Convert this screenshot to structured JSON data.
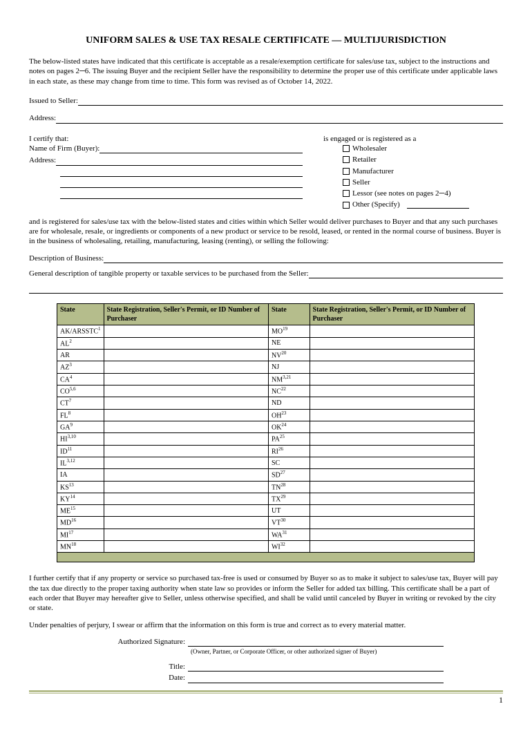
{
  "title": "UNIFORM SALES & USE TAX RESALE CERTIFICATE — MULTIJURISDICTION",
  "intro": "The below-listed states have indicated that this certificate is acceptable as a resale/exemption certificate for sales/use tax, subject to the instructions and notes on pages 2─6. The issuing Buyer and the recipient Seller have the responsibility to determine the proper use of this certificate under applicable laws in each state, as these may change from time to time. This form was revised as of October 14, 2022.",
  "issued_label": "Issued to Seller:",
  "address_label": "Address:",
  "certify_label": "I certify that:",
  "firm_label": "Name of Firm (Buyer):",
  "addr2_label": "Address:",
  "engaged_label": "is engaged or is registered as a",
  "checks": {
    "wholesaler": "Wholesaler",
    "retailer": "Retailer",
    "manufacturer": "Manufacturer",
    "seller": "Seller",
    "lessor": "Lessor (see notes on pages 2─4)",
    "other": "Other (Specify)"
  },
  "reg_para": "and is registered for sales/use tax with the below-listed states and cities within which Seller would deliver purchases to Buyer and that any such purchases are for wholesale, resale, or ingredients or components of a new product or service to be resold, leased, or rented in the normal course of business. Buyer is in the business of wholesaling, retailing, manufacturing, leasing (renting), or selling the following:",
  "desc_bus_label": "Description of Business:",
  "gen_desc_label": "General description of tangible property or taxable services to be purchased from the Seller:",
  "table": {
    "header_state": "State",
    "header_reg": "State Registration, Seller's Permit, or ID Number of Purchaser",
    "left": [
      {
        "s": "AK/ARSSTC",
        "n": "1"
      },
      {
        "s": "AL",
        "n": "2"
      },
      {
        "s": "AR",
        "n": ""
      },
      {
        "s": "AZ",
        "n": "3"
      },
      {
        "s": "CA",
        "n": "4"
      },
      {
        "s": "CO",
        "n": "5,6"
      },
      {
        "s": "CT",
        "n": "7"
      },
      {
        "s": "FL",
        "n": "8"
      },
      {
        "s": "GA",
        "n": "9"
      },
      {
        "s": "HI",
        "n": "3,10"
      },
      {
        "s": "ID",
        "n": "11"
      },
      {
        "s": "IL",
        "n": "3,12"
      },
      {
        "s": "IA",
        "n": ""
      },
      {
        "s": "KS",
        "n": "13"
      },
      {
        "s": "KY",
        "n": "14"
      },
      {
        "s": "ME",
        "n": "15"
      },
      {
        "s": "MD",
        "n": "16"
      },
      {
        "s": "MI",
        "n": "17"
      },
      {
        "s": "MN",
        "n": "18"
      }
    ],
    "right": [
      {
        "s": "MO",
        "n": "19"
      },
      {
        "s": "NE",
        "n": ""
      },
      {
        "s": "NV",
        "n": "20"
      },
      {
        "s": "NJ",
        "n": ""
      },
      {
        "s": "NM",
        "n": "3,21"
      },
      {
        "s": "NC",
        "n": "22"
      },
      {
        "s": "ND",
        "n": ""
      },
      {
        "s": "OH",
        "n": "23"
      },
      {
        "s": "OK",
        "n": "24"
      },
      {
        "s": "PA",
        "n": "25"
      },
      {
        "s": "RI",
        "n": "26"
      },
      {
        "s": "SC",
        "n": ""
      },
      {
        "s": "SD",
        "n": "27"
      },
      {
        "s": "TN",
        "n": "28"
      },
      {
        "s": "TX",
        "n": "29"
      },
      {
        "s": "UT",
        "n": ""
      },
      {
        "s": "VT",
        "n": "30"
      },
      {
        "s": "WA",
        "n": "31"
      },
      {
        "s": "WI",
        "n": "32"
      }
    ]
  },
  "cert_para": "I further certify that if any property or service so purchased tax-free is used or consumed by Buyer so as to make it subject to sales/use tax, Buyer will pay the tax due directly to the proper taxing authority when state law so provides or inform the Seller for added tax billing. This certificate shall be a part of each order that Buyer may hereafter give to Seller, unless otherwise specified, and shall be valid until canceled by Buyer in writing or revoked by the city or state.",
  "perjury": "Under penalties of perjury, I swear or affirm that the information on this form is true and correct as to every material matter.",
  "sig": {
    "auth": "Authorized Signature:",
    "sub": "(Owner, Partner, or Corporate Officer, or other authorized signer of Buyer)",
    "title": "Title:",
    "date": "Date:"
  },
  "page": "1"
}
